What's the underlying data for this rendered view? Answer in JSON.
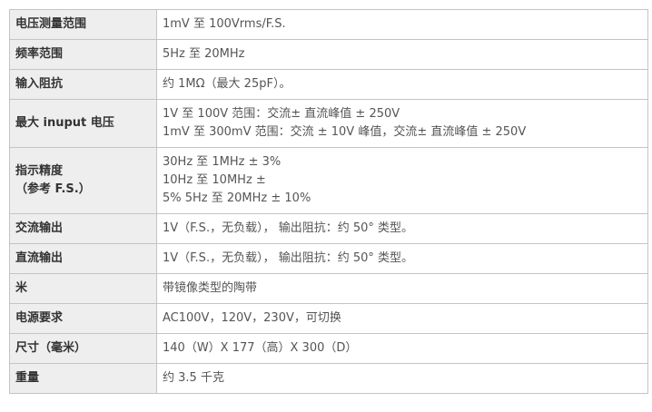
{
  "specs": [
    {
      "label": "电压测量范围",
      "lines": [
        "1mV 至 100Vrms/F.S."
      ]
    },
    {
      "label": "频率范围",
      "lines": [
        "5Hz 至 20MHz"
      ]
    },
    {
      "label": "输入阻抗",
      "lines": [
        "约 1MΩ（最大 25pF）。"
      ]
    },
    {
      "label": "最大 inuput 电压",
      "lines": [
        "1V 至 100V 范围：交流± 直流峰值 ± 250V",
        "1mV 至 300mV 范围：交流 ± 10V 峰值，交流± 直流峰值 ± 250V"
      ]
    },
    {
      "label": "指示精度\n（参考 F.S.）",
      "label_lines": [
        "指示精度",
        "（参考 F.S.）"
      ],
      "lines": [
        "30Hz 至 1MHz ± 3%",
        "10Hz 至 10MHz ±",
        "5% 5Hz 至 20MHz ± 10%"
      ]
    },
    {
      "label": "交流输出",
      "lines": [
        "1V（F.S.，无负载）， 输出阻抗：约 50° 类型。"
      ]
    },
    {
      "label": "直流输出",
      "lines": [
        "1V（F.S.，无负载）， 输出阻抗：约 50° 类型。"
      ]
    },
    {
      "label": "米",
      "lines": [
        "带镜像类型的陶带"
      ]
    },
    {
      "label": "电源要求",
      "lines": [
        "AC100V，120V，230V，可切换"
      ]
    },
    {
      "label": "尺寸（毫米）",
      "lines": [
        "140（W）X 177（高）X 300（D）"
      ]
    },
    {
      "label": "重量",
      "lines": [
        "约 3.5 千克"
      ]
    }
  ]
}
